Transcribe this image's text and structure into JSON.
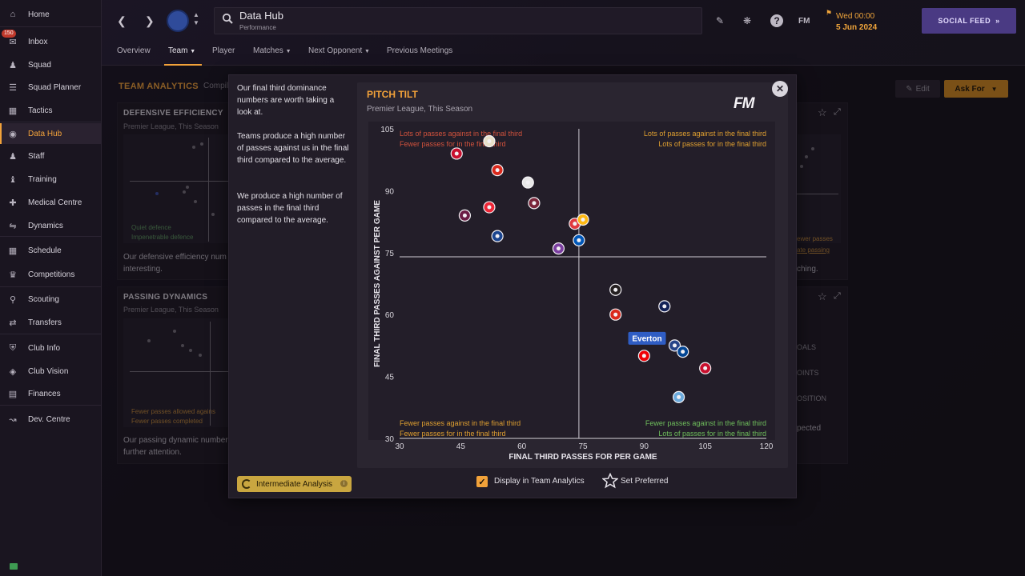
{
  "sidebar": {
    "items": [
      {
        "label": "Home",
        "icon": "home-icon"
      },
      {
        "label": "Inbox",
        "icon": "inbox-icon",
        "badge": "150"
      },
      {
        "label": "Squad",
        "icon": "squad-icon"
      },
      {
        "label": "Squad Planner",
        "icon": "squad-planner-icon"
      },
      {
        "label": "Tactics",
        "icon": "tactics-icon"
      },
      {
        "label": "Data Hub",
        "icon": "data-hub-icon",
        "active": true
      },
      {
        "label": "Staff",
        "icon": "staff-icon"
      },
      {
        "label": "Training",
        "icon": "training-icon"
      },
      {
        "label": "Medical Centre",
        "icon": "medical-icon"
      },
      {
        "label": "Dynamics",
        "icon": "dynamics-icon"
      },
      {
        "label": "Schedule",
        "icon": "schedule-icon"
      },
      {
        "label": "Competitions",
        "icon": "trophy-icon"
      },
      {
        "label": "Scouting",
        "icon": "scouting-icon"
      },
      {
        "label": "Transfers",
        "icon": "transfers-icon"
      },
      {
        "label": "Club Info",
        "icon": "club-info-icon"
      },
      {
        "label": "Club Vision",
        "icon": "club-vision-icon"
      },
      {
        "label": "Finances",
        "icon": "finances-icon"
      },
      {
        "label": "Dev. Centre",
        "icon": "dev-centre-icon"
      }
    ]
  },
  "header": {
    "title": "Data Hub",
    "subtitle": "Performance",
    "date_line1": "Wed 00:00",
    "date_line2": "5 Jun 2024",
    "social_feed": "SOCIAL FEED",
    "fm_short": "FM"
  },
  "tabs": [
    {
      "label": "Overview"
    },
    {
      "label": "Team",
      "active": true
    },
    {
      "label": "Player"
    },
    {
      "label": "Matches"
    },
    {
      "label": "Next Opponent"
    },
    {
      "label": "Previous Meetings"
    }
  ],
  "page": {
    "title": "TEAM ANALYTICS",
    "title_sub": "Compil",
    "edit": "Edit",
    "ask_for": "Ask For"
  },
  "panels": {
    "defensive": {
      "title": "DEFENSIVE EFFICIENCY",
      "sub": "Premier League, This Season",
      "label_a": "Quiet defence",
      "label_b": "Impenetrable defence",
      "text": "Our defensive efficiency num",
      "text2": "interesting."
    },
    "passing": {
      "title": "PASSING DYNAMICS",
      "sub": "Premier League, This Season",
      "label_a": "Fewer passes allowed agains",
      "label_b": "Fewer passes completed",
      "text": "Our passing dynamic number",
      "text2": "further attention."
    },
    "right": {
      "label_a": "ewer passes",
      "label_b": "ate passing",
      "text": "ching.",
      "row1": "OALS",
      "row2": "OINTS",
      "row3": "OSITION",
      "row4": "pected"
    }
  },
  "modal": {
    "para1": "Our final third dominance numbers are worth taking a look at.",
    "para2": "Teams produce a high number of passes against us in the final third compared to the average.",
    "para3": "We produce a high number of passes in the final third compared to the average.",
    "intermediate": "Intermediate Analysis",
    "display_label": "Display in Team Analytics",
    "preferred_label": "Set Preferred",
    "fm_logo": "FM"
  },
  "chart_data": {
    "type": "scatter",
    "title": "PITCH TILT",
    "subtitle": "Premier League, This Season",
    "xlabel": "FINAL THIRD PASSES FOR PER GAME",
    "ylabel": "FINAL THIRD PASSES AGAINST PER GAME",
    "xlim": [
      30,
      120
    ],
    "ylim": [
      30,
      105
    ],
    "x_ticks": [
      "30",
      "45",
      "60",
      "75",
      "90",
      "105",
      "120"
    ],
    "y_ticks": [
      "105",
      "90",
      "75",
      "60",
      "45",
      "30"
    ],
    "x_avg": 74,
    "y_avg": 74,
    "quadrant_labels": {
      "top_left": [
        "Lots of passes against in the final third",
        "Fewer passes for in the final third"
      ],
      "top_right": [
        "Lots of passes against in the final third",
        "Lots of passes for in the final third"
      ],
      "bottom_left": [
        "Fewer passes against in the final third",
        "Fewer passes for in the final third"
      ],
      "bottom_right": [
        "Fewer passes against in the final third",
        "Lots of passes for in the final third"
      ]
    },
    "highlight_label": "Everton",
    "points": [
      {
        "x": 44,
        "y": 99,
        "color": "#c8102e"
      },
      {
        "x": 52,
        "y": 102,
        "color": "#e8e0c8"
      },
      {
        "x": 54,
        "y": 95,
        "color": "#da291c"
      },
      {
        "x": 61.5,
        "y": 92,
        "color": "#e8e8e8"
      },
      {
        "x": 46,
        "y": 84,
        "color": "#6c1d45"
      },
      {
        "x": 52,
        "y": 86,
        "color": "#ee2737"
      },
      {
        "x": 63,
        "y": 87,
        "color": "#7a263a"
      },
      {
        "x": 54,
        "y": 79,
        "color": "#1b458f"
      },
      {
        "x": 69,
        "y": 76,
        "color": "#7b3fa0"
      },
      {
        "x": 74,
        "y": 78,
        "color": "#0057b8"
      },
      {
        "x": 73,
        "y": 82,
        "color": "#e03a3e"
      },
      {
        "x": 75,
        "y": 83,
        "color": "#fdb913"
      },
      {
        "x": 83,
        "y": 66,
        "color": "#241f20"
      },
      {
        "x": 95,
        "y": 62,
        "color": "#132257"
      },
      {
        "x": 83,
        "y": 60,
        "color": "#da291c"
      },
      {
        "x": 90,
        "y": 50,
        "color": "#ef0107"
      },
      {
        "x": 97.5,
        "y": 52.5,
        "color": "#274488"
      },
      {
        "x": 99.5,
        "y": 51,
        "color": "#034694"
      },
      {
        "x": 105,
        "y": 47,
        "color": "#c8102e"
      },
      {
        "x": 98.5,
        "y": 40,
        "color": "#6cabdd"
      }
    ]
  }
}
